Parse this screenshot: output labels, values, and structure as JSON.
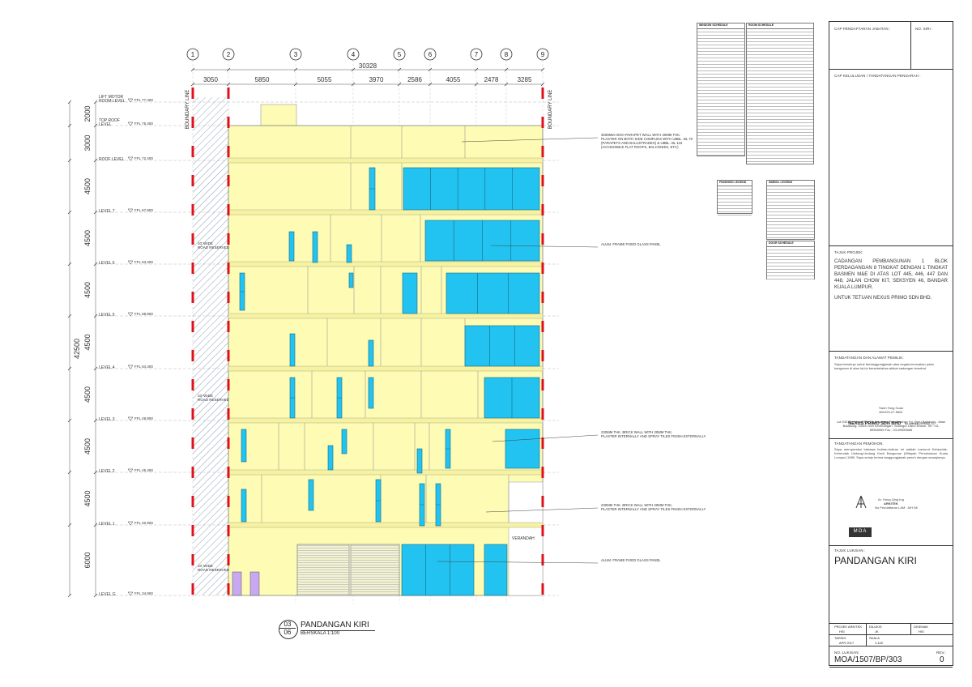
{
  "grid": {
    "labels": [
      "1",
      "2",
      "3",
      "4",
      "5",
      "6",
      "7",
      "8",
      "9"
    ],
    "spans": [
      "3050",
      "5850",
      "5055",
      "3970",
      "2586",
      "4055",
      "2478",
      "3285"
    ],
    "total": "30328"
  },
  "levels": [
    {
      "name": "LIFT MOTOR\nROOM LEVEL",
      "ffl": "FFL 77.400"
    },
    {
      "name": "TOP ROOF\nLEVEL",
      "ffl": "FFL 75.400"
    },
    {
      "name": "ROOF LEVEL",
      "ffl": "FFL 72.400"
    },
    {
      "name": "LEVEL 7",
      "ffl": "FFL 67.900"
    },
    {
      "name": "LEVEL 6",
      "ffl": "FFL 63.400"
    },
    {
      "name": "LEVEL 5",
      "ffl": "FFL 58.900"
    },
    {
      "name": "LEVEL 4",
      "ffl": "FFL 54.400"
    },
    {
      "name": "LEVEL 3",
      "ffl": "FFL 49.900"
    },
    {
      "name": "LEVEL 2",
      "ffl": "FFL 45.400"
    },
    {
      "name": "LEVEL 1",
      "ffl": "FFL 40.900"
    },
    {
      "name": "LEVEL G",
      "ffl": "FFL 34.900"
    }
  ],
  "heights": [
    "2000",
    "3000",
    "4500",
    "4500",
    "4500",
    "4500",
    "4500",
    "4500",
    "4500",
    "6000"
  ],
  "total_height": "42500",
  "side_labels": {
    "boundary": "BOUNDARY LINE",
    "road": "10' WIDE\nROAD RESERVED",
    "verandah": "VERANDAH"
  },
  "notes": {
    "parapet": "3000MM HIGH PARAPET WALL WITH 20MM THK.\nPLASTER ON BOTH SIDE COMPLIES WITH UBBL. BL 70\n(PARAPETS AND BALUSTRADES) & UBBL. BL 116\n(ACCESSIBLE FLAT ROOFS, BALCONIES, ETC)",
    "glass1": "ALUM. FRAME FIXED GLASS PANEL",
    "brick1": "230MM THK. BRICK WALL WITH 20MM THK.\nPLASTER INTERNALLY AND SPRAY TILES FINISH EXTERNALLY",
    "brick2": "230MM THK. BRICK WALL WITH 20MM THK.\nPLASTER INTERNALLY AND SPRAY TILES FINISH EXTERNALLY",
    "glass2": "ALUM. FRAME FIXED GLASS PANEL"
  },
  "drawing_title": {
    "num_top": "03",
    "num_bottom": "06",
    "title": "PANDANGAN KIRI",
    "scale": "BERSKALA 1:100"
  },
  "schedules": {
    "window": "WINDOW SCHEDULE",
    "room": "ROOM SCHEDULE",
    "finishing": "FINISHING LEGEND",
    "symbol": "SIMBOL LEGEND",
    "door": "DOOR SCHEDULE"
  },
  "title_block": {
    "cap_pendaftaran": "CAP PENDAFTARAN JABATAN :",
    "no_siri": "NO. SIRI :",
    "cap_kelulusan": "CAP KELULUSAN / TANDATANGAN PENGARAH :",
    "tajuk_projek_label": "TAJUK PROJEK:",
    "project_desc": "CADANGAN PEMBANGUNAN 1 BLOK PERDAGANGAN 8 TINGKAT DENGAN 1 TINGKAT BASMEN M&E DI ATAS LOT 445, 446, 447 DAN 448, JALAN CHOW KIT, SEKSYEN 46, BANDAR KUALA LUMPUR.",
    "owner": "UNTUK TETUAN NEXUS PRIMO SDN BHD.",
    "tandatangan_pemilik": "TANDATANGAN DAN ALAMAT PEMILIK:",
    "pemilik_text": "Saya bersetuju untuk bertanggungjawab atas segala kerosakan pada bangunan di atas lot-lot bersebelahan akibat cadangan tersebut.",
    "signatory": "Tiaoh Tang Guan",
    "signatory_ic": "681023-07-5661",
    "company": "NEXUS PRIMO SDN BHD",
    "company_suffix": "No syarikat (999850-X)",
    "address": "Lot 5321S, Jalan KPB 10, Kawasan Perindustrian Kg. Baru Balakong, Jalan Balakong, 43300 Seri Kembangan, Selangor Darul Ehsan. Tel : 03-89555555   Fax : 03-89555666",
    "tandatangan_pemohon": "TANDATANGAN PEMOHON:",
    "pemohon_text": "Saya memperakui bahawa butiran-butiran ini adalah menurut Kehendak-Kehendak Undang-Undang Kecil Bangunan (Wilayah Persekutuan Kuala Lumpur) 1985. Saya setuju terima tanggungjawab penuh dengan sewajarnya.",
    "architect_name": "Ar. Hong Qing Ing",
    "architect_title": "ARKITEK",
    "architect_no": "No Pendaftaran LAM : A/H 68",
    "firm_logo": "MOA",
    "tajuk_lukisan_label": "TAJUK LUKISAN :",
    "tajuk_lukisan": "PANDANGAN KIRI",
    "projek_arkitek_label": "PROJEK ARKITEK",
    "projek_arkitek": "HSI",
    "dilukis_label": "DILUKIS",
    "dilukis": "JK",
    "disemak_label": "DISEMAK",
    "disemak": "HSI",
    "tarikh_label": "TARIKH",
    "tarikh": "APR 2017",
    "skala_label": "SKALA",
    "skala": "1:100",
    "no_lukisan_label": "NO. LUKISAN:",
    "no_lukisan": "MOA/1507/BP/303",
    "rev_label": "REV.:",
    "rev": "0"
  },
  "colors": {
    "wall": "#fdfbb4",
    "glass": "#22c3f0",
    "boundary": "#e0101a",
    "hatch": "#8aa0b4",
    "door": "#c8a8f0"
  }
}
